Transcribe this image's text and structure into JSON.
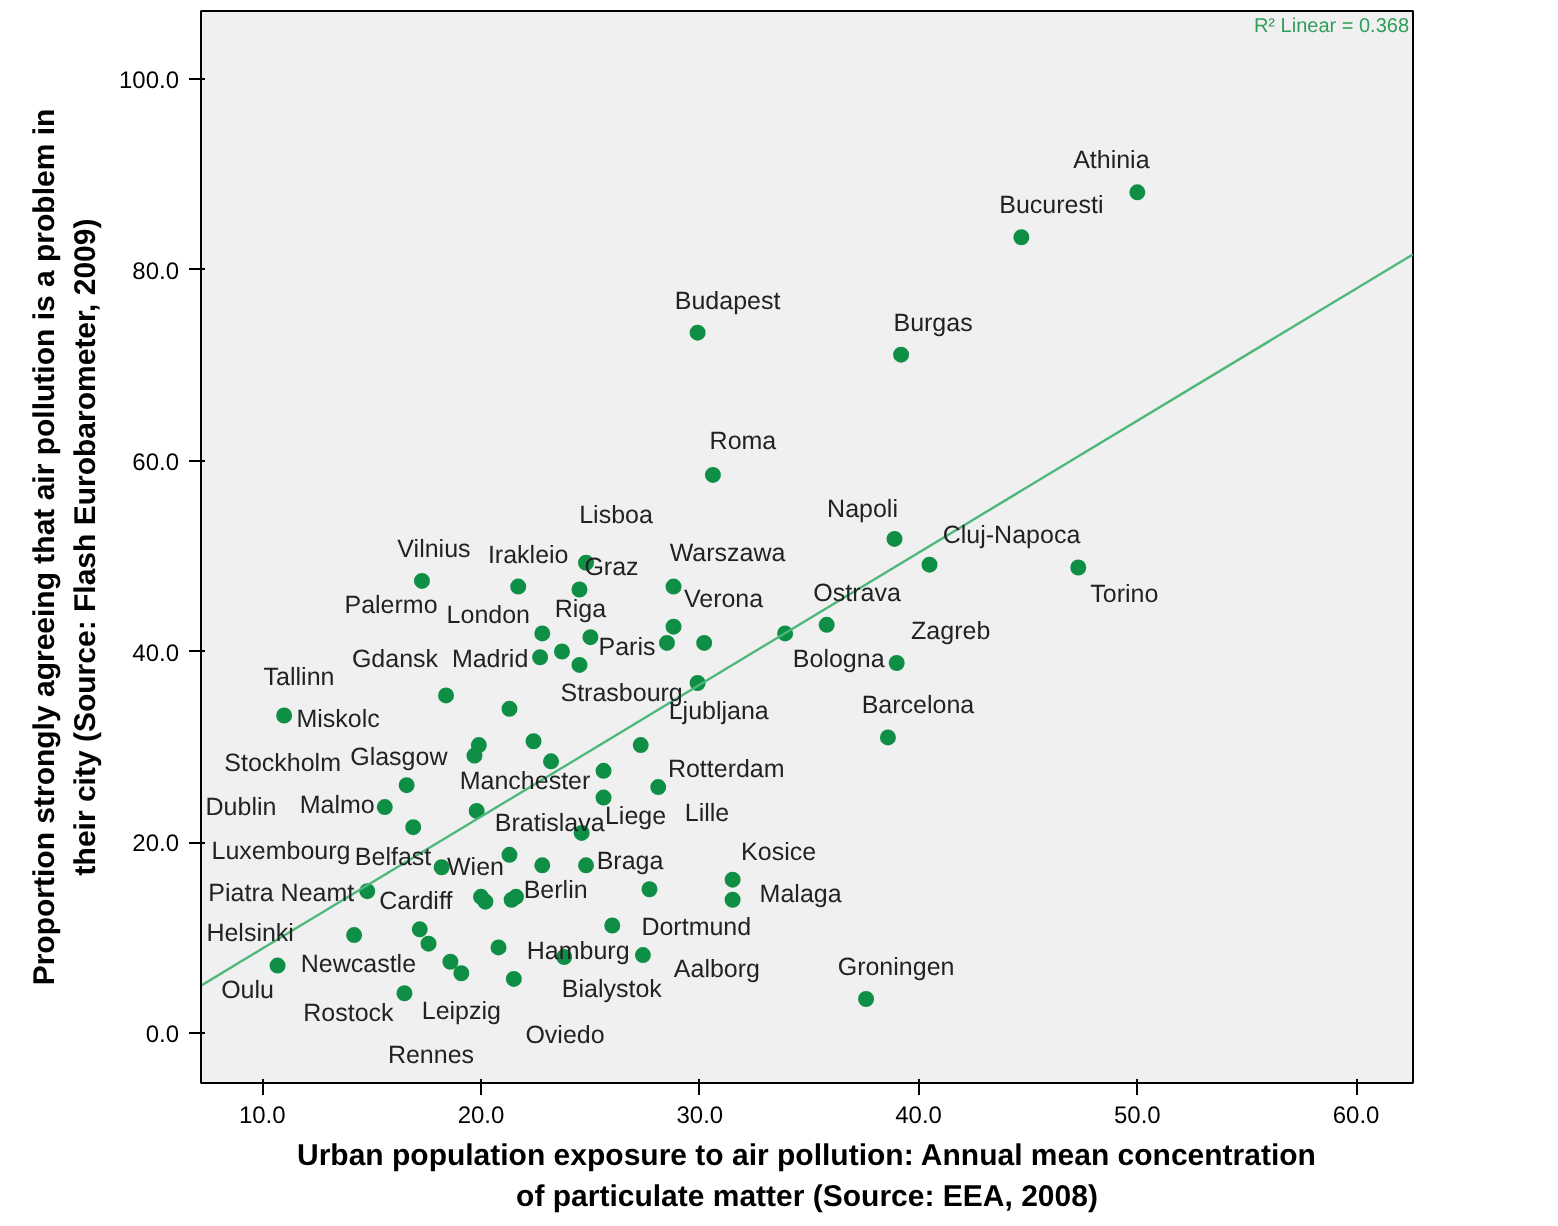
{
  "chart_data": {
    "type": "scatter",
    "xlabel": "Urban population exposure to air pollution: Annual mean concentration\nof particulate matter (Source: EEA, 2008)",
    "ylabel": "Proportion strongly agreeing that air pollution is a problem in\ntheir city (Source: Flash Eurobarometer, 2009)",
    "xlim": [
      7.2,
      62.6
    ],
    "ylim": [
      -5.2,
      107.1
    ],
    "xticks": [
      {
        "value": 10,
        "label": "10.0"
      },
      {
        "value": 20,
        "label": "20.0"
      },
      {
        "value": 30,
        "label": "30.0"
      },
      {
        "value": 40,
        "label": "40.0"
      },
      {
        "value": 50,
        "label": "50.0"
      },
      {
        "value": 60,
        "label": "60.0"
      }
    ],
    "yticks": [
      {
        "value": 0,
        "label": "0.0"
      },
      {
        "value": 20,
        "label": "20.0"
      },
      {
        "value": 40,
        "label": "40.0"
      },
      {
        "value": 60,
        "label": "60.0"
      },
      {
        "value": 80,
        "label": "80.0"
      },
      {
        "value": 100,
        "label": "100.0"
      }
    ],
    "grid": false,
    "marker": "circle",
    "series": [
      {
        "color": "#0f8f46",
        "x": [
          50.0,
          44.7,
          29.9,
          39.2,
          30.6,
          38.9,
          40.5,
          47.3,
          24.8,
          24.5,
          21.7,
          17.3,
          28.8,
          28.8,
          28.5,
          30.2,
          25.0,
          22.8,
          23.7,
          22.7,
          24.5,
          33.9,
          35.8,
          39.0,
          29.9,
          18.4,
          21.3,
          11.0,
          22.4,
          23.2,
          19.9,
          19.7,
          38.6,
          27.3,
          16.6,
          25.6,
          25.6,
          28.1,
          19.8,
          15.6,
          16.9,
          24.6,
          18.2,
          21.3,
          22.8,
          24.8,
          27.7,
          31.5,
          31.5,
          14.8,
          20.0,
          20.2,
          21.4,
          21.6,
          26.0,
          14.2,
          17.2,
          17.6,
          20.8,
          23.8,
          27.4,
          10.7,
          18.6,
          19.1,
          21.5,
          16.5,
          37.6
        ],
        "values": [
          88.1,
          83.4,
          73.4,
          71.1,
          58.5,
          51.8,
          49.1,
          48.8,
          49.3,
          46.5,
          46.8,
          47.4,
          46.8,
          42.6,
          40.9,
          40.9,
          41.5,
          41.9,
          40.0,
          39.4,
          38.6,
          41.9,
          42.8,
          38.8,
          36.7,
          35.4,
          34.0,
          33.3,
          30.6,
          28.5,
          30.2,
          29.1,
          31.0,
          30.2,
          26.0,
          27.5,
          24.7,
          25.8,
          23.3,
          23.7,
          21.6,
          21.0,
          17.4,
          18.7,
          17.6,
          17.6,
          15.1,
          16.1,
          14.0,
          14.9,
          14.3,
          13.8,
          14.0,
          14.3,
          11.3,
          10.3,
          10.9,
          9.4,
          9.0,
          8.0,
          8.2,
          7.1,
          7.5,
          6.3,
          5.7,
          4.2,
          3.6
        ]
      },
      {
        "type": "line",
        "color": "#4cb77a",
        "marker": "none",
        "x": [
          7.2,
          62.6
        ],
        "values": [
          5.0,
          81.6
        ]
      }
    ],
    "annotations": [
      "R² Linear = 0.368",
      "Palermo",
      "Gdansk",
      "Tallinn",
      "Dublin",
      "Lille",
      "Luxembourg",
      "Oviedo",
      "Rennes",
      {
        "text": "Athinia",
        "x": 50.0,
        "y": 88.1
      },
      {
        "text": "Bucuresti",
        "x": 44.7,
        "y": 83.4
      },
      {
        "text": "Budapest",
        "x": 29.9,
        "y": 73.4
      },
      {
        "text": "Burgas",
        "x": 39.2,
        "y": 71.1
      },
      {
        "text": "Roma",
        "x": 30.6,
        "y": 58.5
      },
      {
        "text": "Napoli",
        "x": 38.9,
        "y": 51.8
      },
      {
        "text": "Cluj-Napoca",
        "x": 40.5,
        "y": 49.1
      },
      {
        "text": "Torino",
        "x": 47.3,
        "y": 48.8
      },
      {
        "text": "Lisboa",
        "x": 24.8,
        "y": 49.3
      },
      {
        "text": "Graz",
        "x": 24.5,
        "y": 46.5
      },
      {
        "text": "Irakleio",
        "x": 21.7,
        "y": 46.8
      },
      {
        "text": "Vilnius",
        "x": 17.3,
        "y": 47.4
      },
      {
        "text": "Warszawa",
        "x": 28.8,
        "y": 46.8
      },
      {
        "text": "Verona",
        "x": 28.8,
        "y": 42.6
      },
      {
        "text": "Ostrava",
        "x": 33.9,
        "y": 41.9
      },
      {
        "text": "London",
        "x": 22.8,
        "y": 41.9
      },
      {
        "text": "Riga",
        "x": 25.0,
        "y": 41.5
      },
      {
        "text": "Paris",
        "x": 28.5,
        "y": 40.9
      },
      {
        "text": "Zagreb",
        "x": 39.0,
        "y": 38.8
      },
      {
        "text": "Madrid",
        "x": 22.7,
        "y": 39.4
      },
      {
        "text": "Bologna",
        "x": 35.8,
        "y": 42.8
      },
      {
        "text": "Strasbourg",
        "x": 29.9,
        "y": 36.7
      },
      {
        "text": "Ljubljana",
        "x": 27.3,
        "y": 30.2
      },
      {
        "text": "Barcelona",
        "x": 38.6,
        "y": 31.0
      },
      {
        "text": "Miskolc",
        "x": 11.0,
        "y": 33.3
      },
      {
        "text": "Stockholm",
        "x": 16.6,
        "y": 26.0
      },
      {
        "text": "Glasgow",
        "x": 19.9,
        "y": 30.2
      },
      {
        "text": "Manchester",
        "x": 23.2,
        "y": 28.5
      },
      {
        "text": "Rotterdam",
        "x": 28.1,
        "y": 25.8
      },
      {
        "text": "Malmo",
        "x": 16.9,
        "y": 21.6
      },
      {
        "text": "Bratislava",
        "x": 24.6,
        "y": 21.0
      },
      {
        "text": "Liege",
        "x": 25.6,
        "y": 24.7
      },
      {
        "text": "Belfast",
        "x": 20.0,
        "y": 14.3
      },
      {
        "text": "Wien",
        "x": 21.3,
        "y": 18.7
      },
      {
        "text": "Braga",
        "x": 24.8,
        "y": 17.6
      },
      {
        "text": "Kosice",
        "x": 31.5,
        "y": 16.1
      },
      {
        "text": "Berlin",
        "x": 21.4,
        "y": 14.0
      },
      {
        "text": "Malaga",
        "x": 31.5,
        "y": 14.0
      },
      {
        "text": "Piatra Neamt",
        "x": 14.8,
        "y": 14.9
      },
      {
        "text": "Cardiff",
        "x": 17.2,
        "y": 10.9
      },
      {
        "text": "Dortmund",
        "x": 26.0,
        "y": 11.3
      },
      {
        "text": "Helsinki",
        "x": 14.2,
        "y": 10.3
      },
      {
        "text": "Hamburg",
        "x": 23.8,
        "y": 8.0
      },
      {
        "text": "Newcastle",
        "x": 18.6,
        "y": 7.5
      },
      {
        "text": "Aalborg",
        "x": 27.4,
        "y": 8.2
      },
      {
        "text": "Groningen",
        "x": 37.6,
        "y": 3.6
      },
      {
        "text": "Bialystok",
        "x": 21.5,
        "y": 5.7
      },
      {
        "text": "Oulu",
        "x": 10.7,
        "y": 7.1
      },
      {
        "text": "Rostock",
        "x": 16.5,
        "y": 4.2
      },
      {
        "text": "Leipzig",
        "x": 19.1,
        "y": 6.3
      }
    ]
  }
}
